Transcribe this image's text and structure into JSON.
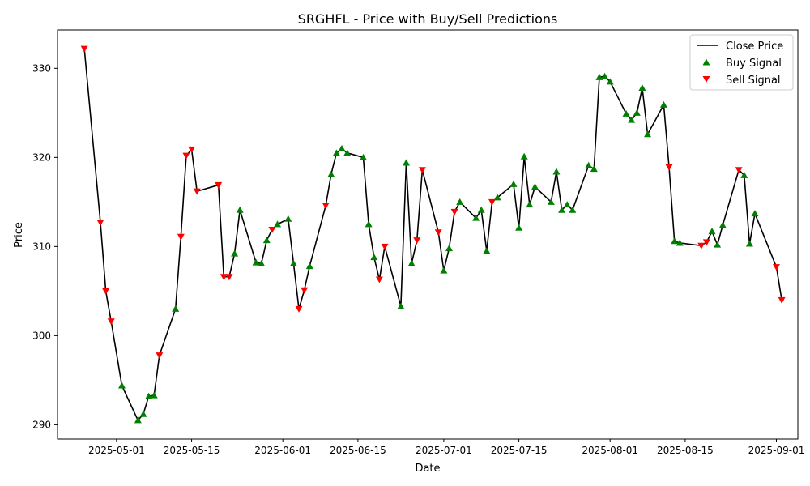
{
  "chart_data": {
    "type": "line",
    "title": "SRGHFL - Price with Buy/Sell Predictions",
    "xlabel": "Date",
    "ylabel": "Price",
    "x_ticks": [
      "2025-05-01",
      "2025-05-15",
      "2025-06-01",
      "2025-06-15",
      "2025-07-01",
      "2025-07-15",
      "2025-08-01",
      "2025-08-15",
      "2025-09-01"
    ],
    "y_ticks": [
      290,
      300,
      310,
      320,
      330
    ],
    "ylim": [
      288.4,
      334.3
    ],
    "xlim": [
      "2025-04-20",
      "2025-09-05"
    ],
    "grid": false,
    "legend": {
      "placement": "top-right",
      "entries": [
        "Close Price",
        "Buy Signal",
        "Sell Signal"
      ]
    },
    "colors": {
      "line": "#000000",
      "buy": "#008000",
      "sell": "#ff0000"
    },
    "series": [
      {
        "name": "Close Price",
        "points": [
          {
            "x": "2025-04-25",
            "y": 332.2,
            "signal": "sell"
          },
          {
            "x": "2025-04-28",
            "y": 312.7,
            "signal": "sell"
          },
          {
            "x": "2025-04-29",
            "y": 305.0,
            "signal": "sell"
          },
          {
            "x": "2025-04-30",
            "y": 301.6,
            "signal": "sell"
          },
          {
            "x": "2025-05-02",
            "y": 294.4,
            "signal": "buy"
          },
          {
            "x": "2025-05-05",
            "y": 290.5,
            "signal": "buy"
          },
          {
            "x": "2025-05-06",
            "y": 291.2,
            "signal": "buy"
          },
          {
            "x": "2025-05-07",
            "y": 293.2,
            "signal": "buy"
          },
          {
            "x": "2025-05-08",
            "y": 293.3,
            "signal": "buy"
          },
          {
            "x": "2025-05-09",
            "y": 297.8,
            "signal": "sell"
          },
          {
            "x": "2025-05-12",
            "y": 303.0,
            "signal": "buy"
          },
          {
            "x": "2025-05-13",
            "y": 311.1,
            "signal": "sell"
          },
          {
            "x": "2025-05-14",
            "y": 320.2,
            "signal": "sell"
          },
          {
            "x": "2025-05-15",
            "y": 320.9,
            "signal": "sell"
          },
          {
            "x": "2025-05-16",
            "y": 316.2,
            "signal": "sell"
          },
          {
            "x": "2025-05-20",
            "y": 316.9,
            "signal": "sell"
          },
          {
            "x": "2025-05-21",
            "y": 306.6,
            "signal": "sell"
          },
          {
            "x": "2025-05-22",
            "y": 306.6,
            "signal": "sell"
          },
          {
            "x": "2025-05-23",
            "y": 309.2,
            "signal": "buy"
          },
          {
            "x": "2025-05-24",
            "y": 314.1,
            "signal": "buy"
          },
          {
            "x": "2025-05-27",
            "y": 308.2,
            "signal": "buy"
          },
          {
            "x": "2025-05-28",
            "y": 308.1,
            "signal": "buy"
          },
          {
            "x": "2025-05-29",
            "y": 310.7,
            "signal": "buy"
          },
          {
            "x": "2025-05-30",
            "y": 311.9,
            "signal": "sell"
          },
          {
            "x": "2025-05-31",
            "y": 312.5,
            "signal": "buy"
          },
          {
            "x": "2025-06-02",
            "y": 313.1,
            "signal": "buy"
          },
          {
            "x": "2025-06-03",
            "y": 308.1,
            "signal": "buy"
          },
          {
            "x": "2025-06-04",
            "y": 303.0,
            "signal": "sell"
          },
          {
            "x": "2025-06-05",
            "y": 305.1,
            "signal": "sell"
          },
          {
            "x": "2025-06-06",
            "y": 307.8,
            "signal": "buy"
          },
          {
            "x": "2025-06-09",
            "y": 314.6,
            "signal": "sell"
          },
          {
            "x": "2025-06-10",
            "y": 318.1,
            "signal": "buy"
          },
          {
            "x": "2025-06-11",
            "y": 320.5,
            "signal": "buy"
          },
          {
            "x": "2025-06-12",
            "y": 321.0,
            "signal": "buy"
          },
          {
            "x": "2025-06-13",
            "y": 320.5,
            "signal": "buy"
          },
          {
            "x": "2025-06-16",
            "y": 320.0,
            "signal": "buy"
          },
          {
            "x": "2025-06-17",
            "y": 312.5,
            "signal": "buy"
          },
          {
            "x": "2025-06-18",
            "y": 308.8,
            "signal": "buy"
          },
          {
            "x": "2025-06-19",
            "y": 306.3,
            "signal": "sell"
          },
          {
            "x": "2025-06-20",
            "y": 310.0,
            "signal": "sell"
          },
          {
            "x": "2025-06-23",
            "y": 303.3,
            "signal": "buy"
          },
          {
            "x": "2025-06-24",
            "y": 319.4,
            "signal": "buy"
          },
          {
            "x": "2025-06-25",
            "y": 308.1,
            "signal": "buy"
          },
          {
            "x": "2025-06-26",
            "y": 310.7,
            "signal": "sell"
          },
          {
            "x": "2025-06-27",
            "y": 318.6,
            "signal": "sell"
          },
          {
            "x": "2025-06-30",
            "y": 311.6,
            "signal": "sell"
          },
          {
            "x": "2025-07-01",
            "y": 307.3,
            "signal": "buy"
          },
          {
            "x": "2025-07-02",
            "y": 309.8,
            "signal": "buy"
          },
          {
            "x": "2025-07-03",
            "y": 313.9,
            "signal": "sell"
          },
          {
            "x": "2025-07-04",
            "y": 315.0,
            "signal": "buy"
          },
          {
            "x": "2025-07-07",
            "y": 313.2,
            "signal": "buy"
          },
          {
            "x": "2025-07-08",
            "y": 314.1,
            "signal": "buy"
          },
          {
            "x": "2025-07-09",
            "y": 309.5,
            "signal": "buy"
          },
          {
            "x": "2025-07-10",
            "y": 315.0,
            "signal": "sell"
          },
          {
            "x": "2025-07-11",
            "y": 315.5,
            "signal": "buy"
          },
          {
            "x": "2025-07-14",
            "y": 317.0,
            "signal": "buy"
          },
          {
            "x": "2025-07-15",
            "y": 312.1,
            "signal": "buy"
          },
          {
            "x": "2025-07-16",
            "y": 320.1,
            "signal": "buy"
          },
          {
            "x": "2025-07-17",
            "y": 314.7,
            "signal": "buy"
          },
          {
            "x": "2025-07-18",
            "y": 316.7,
            "signal": "buy"
          },
          {
            "x": "2025-07-21",
            "y": 315.0,
            "signal": "buy"
          },
          {
            "x": "2025-07-22",
            "y": 318.4,
            "signal": "buy"
          },
          {
            "x": "2025-07-23",
            "y": 314.1,
            "signal": "buy"
          },
          {
            "x": "2025-07-24",
            "y": 314.7,
            "signal": "buy"
          },
          {
            "x": "2025-07-25",
            "y": 314.1,
            "signal": "buy"
          },
          {
            "x": "2025-07-28",
            "y": 319.1,
            "signal": "buy"
          },
          {
            "x": "2025-07-29",
            "y": 318.7,
            "signal": "buy"
          },
          {
            "x": "2025-07-30",
            "y": 329.0,
            "signal": "buy"
          },
          {
            "x": "2025-07-31",
            "y": 329.1,
            "signal": "buy"
          },
          {
            "x": "2025-08-01",
            "y": 328.5,
            "signal": "buy"
          },
          {
            "x": "2025-08-04",
            "y": 324.9,
            "signal": "buy"
          },
          {
            "x": "2025-08-05",
            "y": 324.2,
            "signal": "buy"
          },
          {
            "x": "2025-08-06",
            "y": 325.0,
            "signal": "buy"
          },
          {
            "x": "2025-08-07",
            "y": 327.8,
            "signal": "buy"
          },
          {
            "x": "2025-08-08",
            "y": 322.6,
            "signal": "buy"
          },
          {
            "x": "2025-08-11",
            "y": 325.9,
            "signal": "buy"
          },
          {
            "x": "2025-08-12",
            "y": 318.9,
            "signal": "sell"
          },
          {
            "x": "2025-08-13",
            "y": 310.6,
            "signal": "buy"
          },
          {
            "x": "2025-08-14",
            "y": 310.4,
            "signal": "buy"
          },
          {
            "x": "2025-08-18",
            "y": 310.1,
            "signal": "sell"
          },
          {
            "x": "2025-08-19",
            "y": 310.5,
            "signal": "sell"
          },
          {
            "x": "2025-08-20",
            "y": 311.7,
            "signal": "buy"
          },
          {
            "x": "2025-08-21",
            "y": 310.2,
            "signal": "buy"
          },
          {
            "x": "2025-08-22",
            "y": 312.4,
            "signal": "buy"
          },
          {
            "x": "2025-08-25",
            "y": 318.6,
            "signal": "sell"
          },
          {
            "x": "2025-08-26",
            "y": 318.0,
            "signal": "buy"
          },
          {
            "x": "2025-08-27",
            "y": 310.3,
            "signal": "buy"
          },
          {
            "x": "2025-08-28",
            "y": 313.7,
            "signal": "buy"
          },
          {
            "x": "2025-09-01",
            "y": 307.7,
            "signal": "sell"
          },
          {
            "x": "2025-09-02",
            "y": 304.0,
            "signal": "sell"
          }
        ]
      }
    ]
  }
}
